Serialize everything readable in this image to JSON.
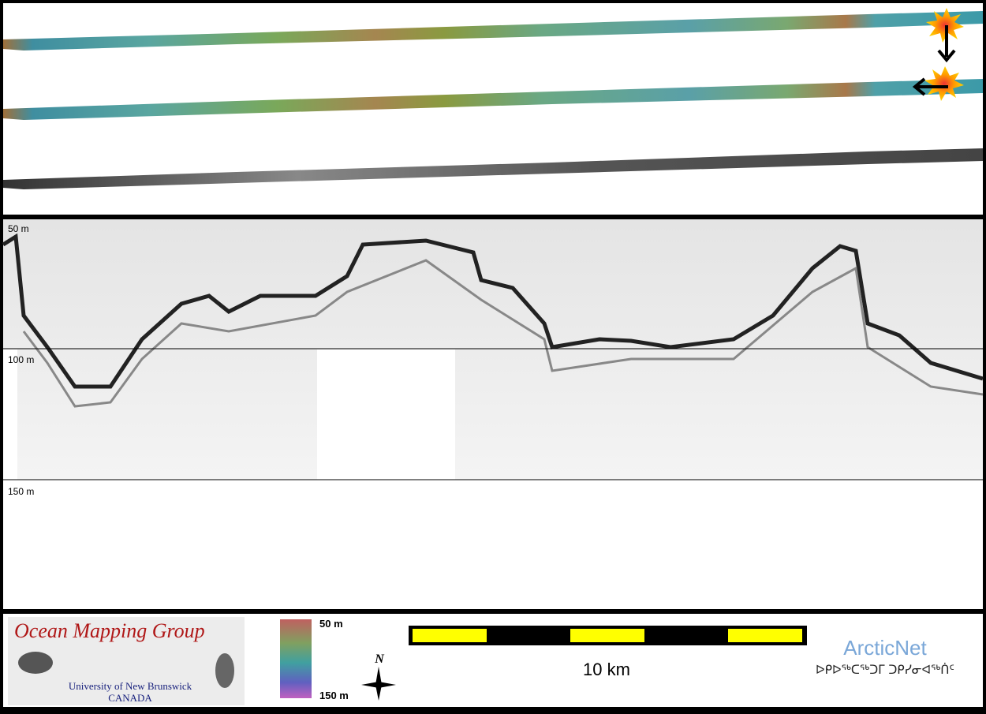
{
  "profile": {
    "depth_labels": [
      "50 m",
      "100 m",
      "150 m"
    ]
  },
  "footer": {
    "logo": {
      "title": "Ocean Mapping Group",
      "line1": "University of New Brunswick",
      "line2": "CANADA"
    },
    "colorbar": {
      "top": "50 m",
      "bottom": "150 m"
    },
    "north": "N",
    "scale": "10 km",
    "partner": {
      "name": "ArcticNet",
      "subtitle": "ᐅᑭᐅᖅᑕᖅᑐᒥ ᑐᑭᓯᓂᐊᖅᑏᑦ"
    }
  }
}
